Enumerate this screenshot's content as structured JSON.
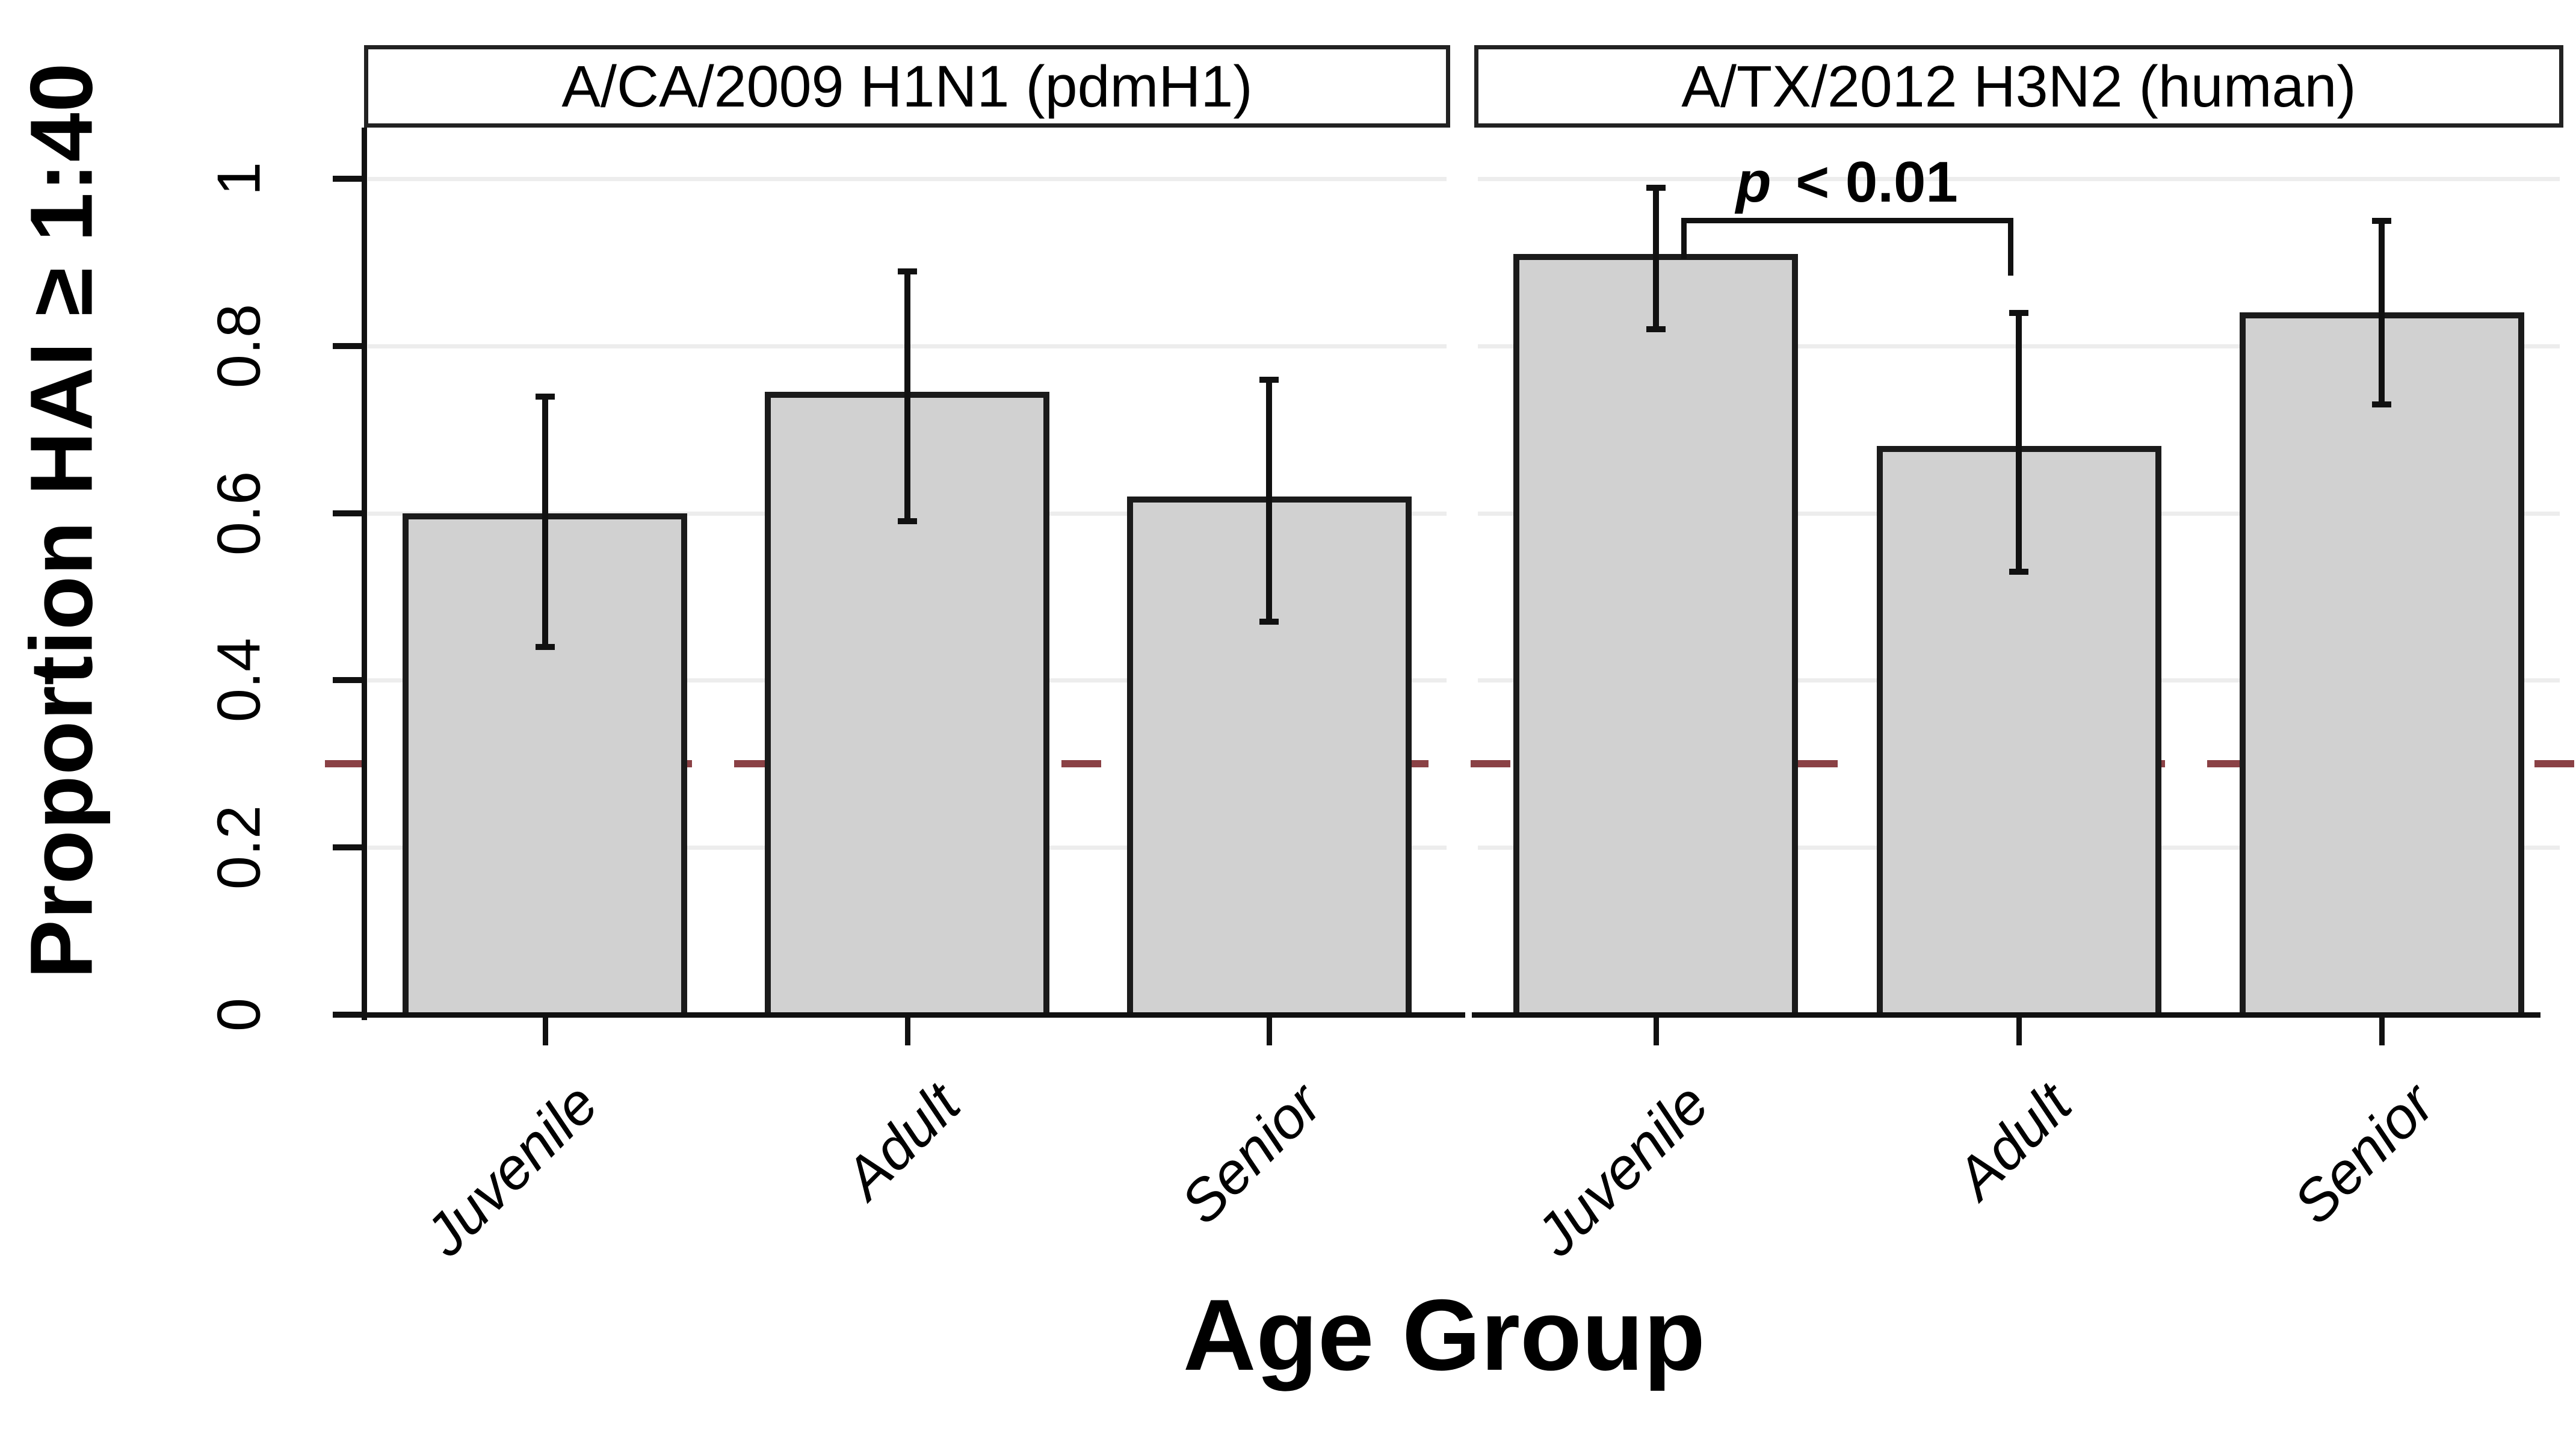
{
  "chart_data": {
    "type": "bar",
    "title": "",
    "ylabel": "Proportion HAI ≥ 1:40",
    "xlabel": "Age Group",
    "categories": [
      "Juvenile",
      "Adult",
      "Senior"
    ],
    "ylim": [
      0,
      1.06
    ],
    "yticks": [
      {
        "label": "0",
        "value": 0
      },
      {
        "label": "0.2",
        "value": 0.2
      },
      {
        "label": "0.4",
        "value": 0.4
      },
      {
        "label": "0.6",
        "value": 0.6
      },
      {
        "label": "0.8",
        "value": 0.8
      },
      {
        "label": "1",
        "value": 1
      }
    ],
    "grid": {
      "show": true,
      "step": 0.2,
      "position": "horizontal"
    },
    "legend": "none",
    "reference_line": {
      "value": 0.3,
      "style": "dashed",
      "color": "#8a4145"
    },
    "panels": [
      {
        "title": "A/CA/2009 H1N1 (pdmH1)",
        "values": [
          0.6,
          0.745,
          0.62
        ],
        "ci_low": [
          0.44,
          0.59,
          0.47
        ],
        "ci_high": [
          0.74,
          0.89,
          0.76
        ]
      },
      {
        "title": "A/TX/2012 H3N2 (human)",
        "values": [
          0.91,
          0.68,
          0.84
        ],
        "ci_low": [
          0.82,
          0.53,
          0.73
        ],
        "ci_high": [
          0.99,
          0.84,
          0.95
        ],
        "annotation": {
          "prefix": "p",
          "rest": " < 0.01",
          "between": [
            "Juvenile",
            "Adult"
          ]
        }
      }
    ],
    "colors": {
      "bar_fill": "#d1d1d1",
      "bar_border": "#1b1b1b",
      "error_bar": "#111111",
      "grid": "#ededed",
      "reference": "#8a4145",
      "axis": "#111111",
      "strip_border": "#222222",
      "strip_fill": "#ffffff"
    }
  }
}
